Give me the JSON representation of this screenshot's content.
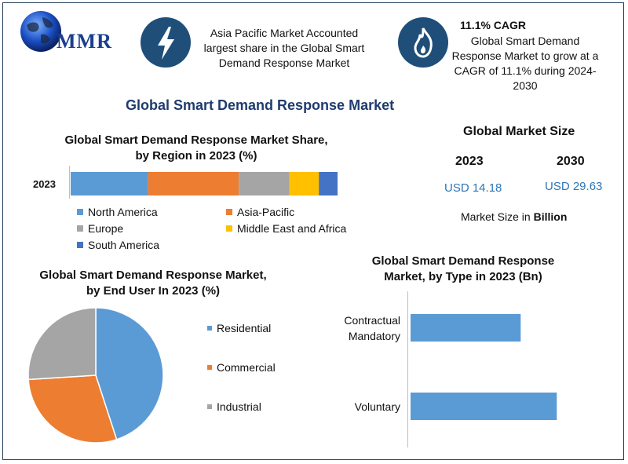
{
  "logo": {
    "text": "MMR"
  },
  "header": {
    "left_text": "Asia Pacific Market Accounted largest share in the Global Smart Demand Response Market",
    "cagr_title": "11.1% CAGR",
    "cagr_text": "Global Smart Demand Response Market to grow at a CAGR of 11.1% during 2024-2030",
    "icons": [
      "lightning-icon",
      "flame-icon"
    ]
  },
  "main_title": "Global Smart Demand Response Market",
  "market_size": {
    "title": "Global Market Size",
    "year1": "2023",
    "year2": "2030",
    "value1": "USD 14.18",
    "value2": "USD 29.63",
    "unit_prefix": "Market Size in ",
    "unit_bold": "Billion"
  },
  "colors": {
    "blue": "#5b9bd5",
    "orange": "#ed7d31",
    "gray": "#a5a5a5",
    "yellow": "#ffc000",
    "dark_blue": "#4472c4",
    "accent": "#1f4e79"
  },
  "chart_data": [
    {
      "type": "bar",
      "orientation": "horizontal-stacked",
      "title": "Global Smart Demand Response Market Share, by Region in 2023 (%)",
      "categories": [
        "2023"
      ],
      "series": [
        {
          "name": "North America",
          "values": [
            29
          ],
          "color": "#5b9bd5"
        },
        {
          "name": "Asia-Pacific",
          "values": [
            34
          ],
          "color": "#ed7d31"
        },
        {
          "name": "Europe",
          "values": [
            19
          ],
          "color": "#a5a5a5"
        },
        {
          "name": "Middle East and Africa",
          "values": [
            11
          ],
          "color": "#ffc000"
        },
        {
          "name": "South America",
          "values": [
            7
          ],
          "color": "#4472c4"
        }
      ],
      "legend": "bottom"
    },
    {
      "type": "pie",
      "title": "Global Smart Demand Response Market, by End User In 2023 (%)",
      "labels": [
        "Residential",
        "Commercial",
        "Industrial"
      ],
      "values": [
        45,
        29,
        26
      ],
      "colors": [
        "#5b9bd5",
        "#ed7d31",
        "#a5a5a5"
      ],
      "legend": "right"
    },
    {
      "type": "bar",
      "orientation": "horizontal",
      "title": "Global Smart Demand Response Market, by Type in 2023 (Bn)",
      "categories": [
        "Contractual Mandatory",
        "Voluntary"
      ],
      "values": [
        6.1,
        8.1
      ],
      "xlim": [
        0,
        10
      ],
      "color": "#5b9bd5"
    }
  ]
}
